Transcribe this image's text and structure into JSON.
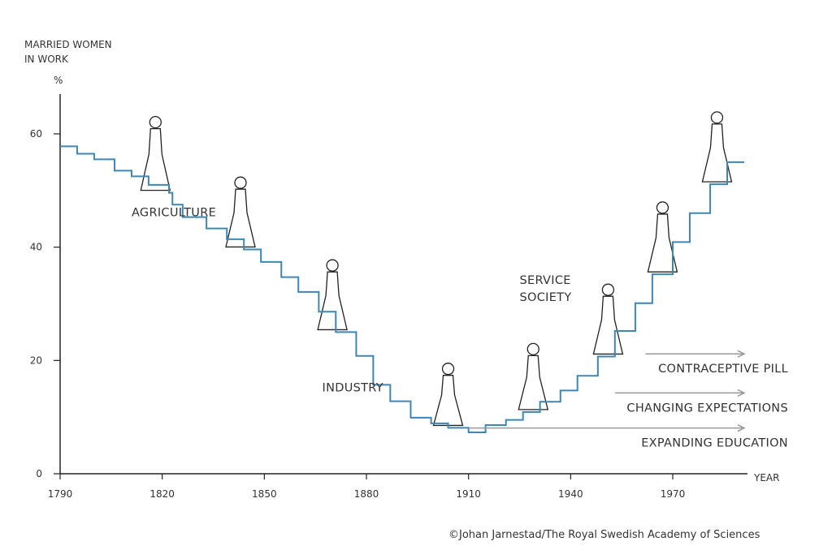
{
  "chart_data": {
    "type": "line",
    "style": "step",
    "ylabel": "MARRIED WOMEN IN WORK",
    "ylabel_lines": [
      "MARRIED WOMEN",
      "IN WORK"
    ],
    "yunit": "%",
    "xlabel": "YEAR",
    "xlim": [
      1790,
      1995
    ],
    "ylim": [
      0,
      68
    ],
    "x_ticks": [
      1790,
      1820,
      1850,
      1880,
      1910,
      1940,
      1970
    ],
    "y_ticks": [
      0,
      20,
      40,
      60
    ],
    "grid": false,
    "line_color": "#3a87b8",
    "steps": [
      [
        1790,
        57.8
      ],
      [
        1795,
        56.5
      ],
      [
        1800,
        55.5
      ],
      [
        1806,
        53.5
      ],
      [
        1811,
        52.5
      ],
      [
        1816,
        51
      ],
      [
        1822,
        49.6
      ],
      [
        1823,
        47.5
      ],
      [
        1826,
        45.3
      ],
      [
        1833,
        43.3
      ],
      [
        1839,
        41.4
      ],
      [
        1844,
        39.6
      ],
      [
        1849,
        37.4
      ],
      [
        1855,
        34.7
      ],
      [
        1860,
        32.1
      ],
      [
        1866,
        28.6
      ],
      [
        1871,
        25
      ],
      [
        1877,
        20.8
      ],
      [
        1882,
        15.7
      ],
      [
        1887,
        12.8
      ],
      [
        1893,
        9.9
      ],
      [
        1899,
        8.9
      ],
      [
        1904,
        8.1
      ],
      [
        1910,
        7.3
      ],
      [
        1915,
        8.6
      ],
      [
        1921,
        9.5
      ],
      [
        1926,
        10.9
      ],
      [
        1931,
        12.7
      ],
      [
        1937,
        14.7
      ],
      [
        1942,
        17.3
      ],
      [
        1948,
        20.7
      ],
      [
        1953,
        25.2
      ],
      [
        1959,
        30.1
      ],
      [
        1964,
        35.2
      ],
      [
        1970,
        40.9
      ],
      [
        1975,
        46
      ],
      [
        1981,
        51.1
      ],
      [
        1986,
        55
      ]
    ],
    "x_end": 1991,
    "era_labels": [
      {
        "text": "AGRICULTURE",
        "x": 1811,
        "y": 45.5
      },
      {
        "text": "INDUSTRY",
        "x": 1867,
        "y": 14.5
      },
      {
        "text": "SERVICE",
        "x": 1925,
        "y": 33.5
      },
      {
        "text": "SOCIETY",
        "x": 1925,
        "y": 30.5
      }
    ],
    "trends": [
      {
        "label": "CONTRACEPTIVE PILL",
        "start": 1962,
        "end": 1991,
        "y": 18.3
      },
      {
        "label": "CHANGING EXPECTATIONS",
        "start": 1953,
        "end": 1991,
        "y": 11.4
      },
      {
        "label": "EXPANDING EDUCATION",
        "start": 1910,
        "end": 1991,
        "y": 5.2
      }
    ],
    "arrow_color": "#999999"
  },
  "credit": "©Johan Jarnestad/The Royal Swedish Academy of Sciences"
}
